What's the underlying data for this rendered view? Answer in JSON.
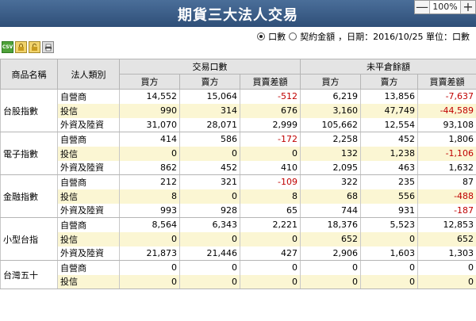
{
  "page": {
    "title": "期貨三大法人交易"
  },
  "zoom": {
    "minus": "—",
    "level": "100%",
    "plus": "+"
  },
  "options": {
    "opt1": "口數",
    "opt2": "契約金額",
    "info": "，日期：2016/10/25 單位：口數"
  },
  "toolbar": {
    "csv": "CSV"
  },
  "colors": {
    "title_bar": "#3c5f8a",
    "highlight_row": "#fbf6d3",
    "negative": "#c00000"
  },
  "headers": {
    "product": "商品名稱",
    "institution": "法人類別",
    "group1": "交易口數",
    "group2": "未平倉餘額",
    "buy": "買方",
    "sell": "賣方",
    "diff": "買賣差額"
  },
  "products": [
    {
      "name": "台股指數",
      "rows": [
        {
          "inst": "自營商",
          "v": [
            "14,552",
            "15,064",
            "-512",
            "6,219",
            "13,856",
            "-7,637"
          ]
        },
        {
          "inst": "投信",
          "v": [
            "990",
            "314",
            "676",
            "3,160",
            "47,749",
            "-44,589"
          ]
        },
        {
          "inst": "外資及陸資",
          "v": [
            "31,070",
            "28,071",
            "2,999",
            "105,662",
            "12,554",
            "93,108"
          ]
        }
      ]
    },
    {
      "name": "電子指數",
      "rows": [
        {
          "inst": "自營商",
          "v": [
            "414",
            "586",
            "-172",
            "2,258",
            "452",
            "1,806"
          ]
        },
        {
          "inst": "投信",
          "v": [
            "0",
            "0",
            "0",
            "132",
            "1,238",
            "-1,106"
          ]
        },
        {
          "inst": "外資及陸資",
          "v": [
            "862",
            "452",
            "410",
            "2,095",
            "463",
            "1,632"
          ]
        }
      ]
    },
    {
      "name": "金融指數",
      "rows": [
        {
          "inst": "自營商",
          "v": [
            "212",
            "321",
            "-109",
            "322",
            "235",
            "87"
          ]
        },
        {
          "inst": "投信",
          "v": [
            "8",
            "0",
            "8",
            "68",
            "556",
            "-488"
          ]
        },
        {
          "inst": "外資及陸資",
          "v": [
            "993",
            "928",
            "65",
            "744",
            "931",
            "-187"
          ]
        }
      ]
    },
    {
      "name": "小型台指",
      "rows": [
        {
          "inst": "自營商",
          "v": [
            "8,564",
            "6,343",
            "2,221",
            "18,376",
            "5,523",
            "12,853"
          ]
        },
        {
          "inst": "投信",
          "v": [
            "0",
            "0",
            "0",
            "652",
            "0",
            "652"
          ]
        },
        {
          "inst": "外資及陸資",
          "v": [
            "21,873",
            "21,446",
            "427",
            "2,906",
            "1,603",
            "1,303"
          ]
        }
      ]
    },
    {
      "name": "台灣五十",
      "rows": [
        {
          "inst": "自營商",
          "v": [
            "0",
            "0",
            "0",
            "0",
            "0",
            "0"
          ]
        },
        {
          "inst": "投信",
          "v": [
            "0",
            "0",
            "0",
            "0",
            "0",
            "0"
          ]
        }
      ]
    }
  ]
}
